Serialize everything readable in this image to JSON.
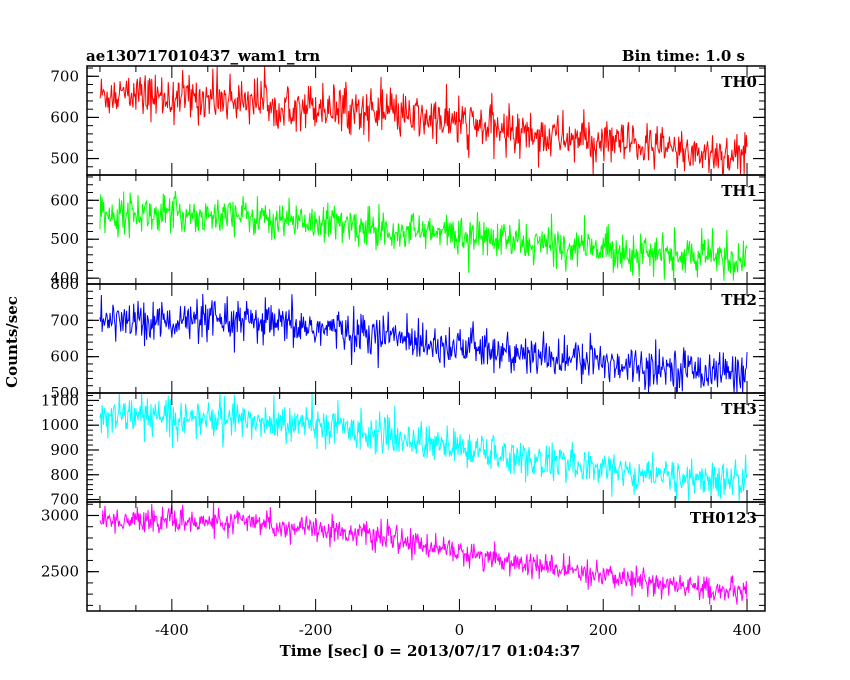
{
  "chart_data": {
    "type": "line",
    "title_left": "ae130717010437_wam1_trn",
    "title_right": "Bin time: 1.0 s",
    "xlabel": "Time [sec] 0 = 2013/07/17 01:04:37",
    "ylabel": "Counts/sec",
    "xlim": [
      -518,
      425
    ],
    "xticks": [
      -400,
      -200,
      0,
      200,
      400
    ],
    "bin_time_s": 1.0,
    "x_start": -500,
    "x_end": 400,
    "panels": [
      {
        "name": "TH0",
        "color": "#ff0000",
        "ylim": [
          460,
          725
        ],
        "yticks": [
          500,
          600,
          700
        ],
        "trend": [
          [
            -500,
            655
          ],
          [
            -300,
            645
          ],
          [
            -150,
            620
          ],
          [
            0,
            585
          ],
          [
            100,
            560
          ],
          [
            200,
            540
          ],
          [
            300,
            520
          ],
          [
            400,
            505
          ]
        ],
        "noise": 28,
        "spikes": 45
      },
      {
        "name": "TH1",
        "color": "#00ff00",
        "ylim": [
          385,
          665
        ],
        "yticks": [
          400,
          500,
          600
        ],
        "trend": [
          [
            -500,
            570
          ],
          [
            -300,
            560
          ],
          [
            -150,
            535
          ],
          [
            0,
            510
          ],
          [
            100,
            488
          ],
          [
            200,
            475
          ],
          [
            300,
            458
          ],
          [
            400,
            448
          ]
        ],
        "noise": 25,
        "spikes": 40
      },
      {
        "name": "TH2",
        "color": "#0000ff",
        "ylim": [
          500,
          800
        ],
        "yticks": [
          500,
          600,
          700,
          800
        ],
        "trend": [
          [
            -500,
            700
          ],
          [
            -300,
            695
          ],
          [
            -150,
            670
          ],
          [
            0,
            630
          ],
          [
            100,
            600
          ],
          [
            200,
            585
          ],
          [
            300,
            568
          ],
          [
            400,
            555
          ]
        ],
        "noise": 28,
        "spikes": 45
      },
      {
        "name": "TH3",
        "color": "#00ffff",
        "ylim": [
          690,
          1130
        ],
        "yticks": [
          700,
          800,
          900,
          1000,
          1100
        ],
        "trend": [
          [
            -500,
            1040
          ],
          [
            -300,
            1020
          ],
          [
            -150,
            985
          ],
          [
            0,
            905
          ],
          [
            100,
            860
          ],
          [
            200,
            825
          ],
          [
            300,
            790
          ],
          [
            400,
            775
          ]
        ],
        "noise": 38,
        "spikes": 60
      },
      {
        "name": "TH0123",
        "color": "#ff00ff",
        "ylim": [
          2150,
          3120
        ],
        "yticks": [
          2500,
          3000
        ],
        "trend": [
          [
            -500,
            2960
          ],
          [
            -300,
            2940
          ],
          [
            -150,
            2850
          ],
          [
            0,
            2680
          ],
          [
            100,
            2550
          ],
          [
            200,
            2460
          ],
          [
            300,
            2380
          ],
          [
            400,
            2300
          ]
        ],
        "noise": 55,
        "spikes": 90
      }
    ]
  }
}
